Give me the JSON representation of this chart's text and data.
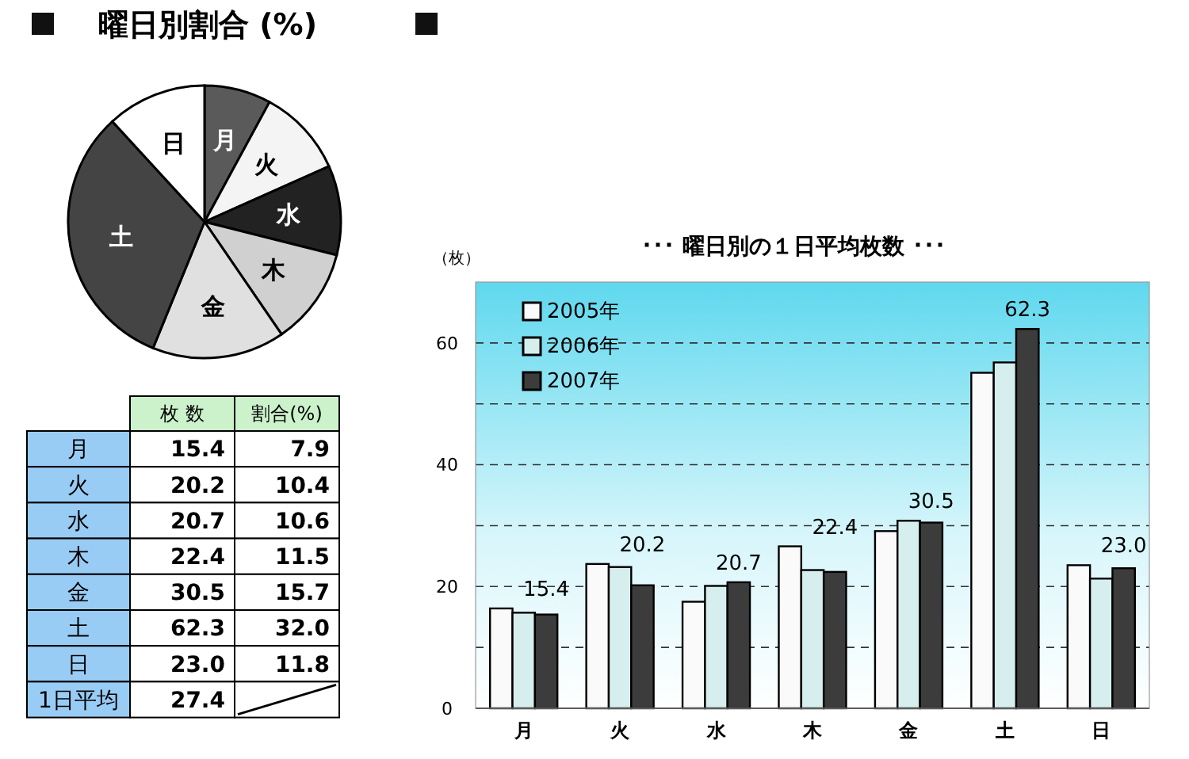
{
  "chart_data": [
    {
      "type": "pie",
      "title": "曜日別割合 (%)",
      "categories": [
        "月",
        "火",
        "水",
        "木",
        "金",
        "土",
        "日"
      ],
      "values": [
        7.9,
        10.4,
        10.6,
        11.5,
        15.7,
        32.0,
        11.8
      ],
      "colors": [
        "#5a5a5a",
        "#f4f4f4",
        "#222222",
        "#d0d0d0",
        "#e0e0e0",
        "#444444",
        "#ffffff"
      ]
    },
    {
      "type": "other",
      "categories": [
        "月",
        "火",
        "水",
        "木",
        "金",
        "土",
        "日",
        "1日平均"
      ],
      "series": [
        {
          "name": "枚 数",
          "values": [
            15.4,
            20.2,
            20.7,
            22.4,
            30.5,
            62.3,
            23.0,
            27.4
          ],
          "value_labels": [
            "15.4",
            "20.2",
            "20.7",
            "22.4",
            "30.5",
            "62.3",
            "23.0",
            "27.4"
          ]
        },
        {
          "name": "割合(%)",
          "values": [
            7.9,
            10.4,
            10.6,
            11.5,
            15.7,
            32.0,
            11.8,
            null
          ],
          "value_labels": [
            "7.9",
            "10.4",
            "10.6",
            "11.5",
            "15.7",
            "32.0",
            "11.8",
            null
          ]
        }
      ]
    },
    {
      "type": "bar",
      "title": "･･･ 曜日別の１日平均枚数 ･･･",
      "ylabel": "（枚）",
      "categories": [
        "月",
        "火",
        "水",
        "木",
        "金",
        "土",
        "日"
      ],
      "series": [
        {
          "name": "2005年",
          "color": "#fafafa",
          "values": [
            16.4,
            23.7,
            17.5,
            26.6,
            29.1,
            55.1,
            23.5
          ]
        },
        {
          "name": "2006年",
          "color": "#d6eeee",
          "values": [
            15.7,
            23.2,
            20.1,
            22.7,
            30.8,
            56.8,
            21.3
          ]
        },
        {
          "name": "2007年",
          "color": "#3c3c3c",
          "values": [
            15.4,
            20.2,
            20.7,
            22.4,
            30.5,
            62.3,
            23.0
          ],
          "value_labels": [
            "15.4",
            "20.2",
            "20.7",
            "22.4",
            "30.5",
            "62.3",
            "23.0"
          ]
        }
      ],
      "ylim": [
        0,
        70
      ],
      "yticks": [
        0,
        {
          "value": 10,
          "label": null
        },
        20,
        {
          "value": 30,
          "label": null
        },
        40,
        {
          "value": 50,
          "label": null
        },
        60
      ],
      "grid": "y",
      "legend": "top left"
    }
  ]
}
